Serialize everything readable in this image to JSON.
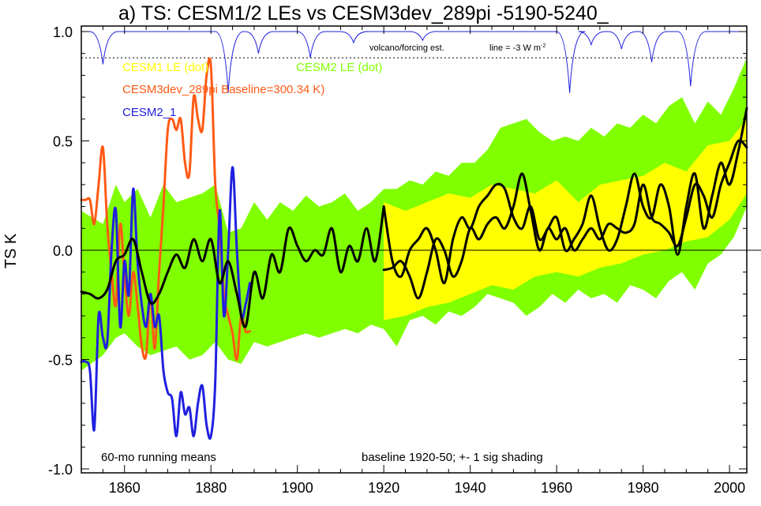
{
  "chart_data": {
    "type": "line",
    "title": "a) TS: CESM1/2 LEs vs CESM3dev_289pi -5190-5240_",
    "xlabel": "",
    "ylabel": "TS K",
    "xlim": [
      1850,
      2004
    ],
    "ylim": [
      -1.0,
      1.0
    ],
    "x_ticks": [
      1860,
      1880,
      1900,
      1920,
      1940,
      1960,
      1980,
      2000
    ],
    "y_ticks": [
      -1.0,
      -0.5,
      0.0,
      0.5,
      1.0
    ],
    "y_tick_labels": [
      "-1.0",
      "-0.5",
      "0.0",
      "0.5",
      "1.0"
    ],
    "grid": false,
    "colors": {
      "cesm1": "#ffff00",
      "cesm2": "#80ff00",
      "cesm3dev": "#ff5a14",
      "cesm2_1": "#2020e0",
      "ensemble_mean": "#000000",
      "volcano": "#2020e0"
    },
    "legend": [
      {
        "label": "CESM1 LE (dot)",
        "color": "#ffff00",
        "placement": "top-left"
      },
      {
        "label": "CESM2 LE (dot)",
        "color": "#80ff00",
        "placement": "top-center"
      },
      {
        "label": "CESM3dev_289pi Baseline=300.34 K)",
        "color": "#ff5a14",
        "placement": "top-left"
      },
      {
        "label": "CESM2_1",
        "color": "#2020e0",
        "placement": "top-left"
      }
    ],
    "annotations": {
      "running_mean": "60-mo running means",
      "baseline": "baseline 1920-50; +- 1 sig shading",
      "volcano": "volcano/forcing est.",
      "volcano_line_prefix": "line = -3 W m",
      "volcano_line_sup": "-2"
    },
    "series": [
      {
        "name": "CESM2 LE (dot)",
        "kind": "band",
        "x": [
          1850,
          1855,
          1858,
          1860,
          1863,
          1866,
          1869,
          1872,
          1875,
          1878,
          1881,
          1884,
          1887,
          1890,
          1893,
          1896,
          1899,
          1902,
          1905,
          1908,
          1911,
          1914,
          1917,
          1920,
          1923,
          1926,
          1929,
          1932,
          1935,
          1938,
          1941,
          1944,
          1947,
          1950,
          1953,
          1956,
          1959,
          1962,
          1965,
          1968,
          1971,
          1974,
          1977,
          1980,
          1983,
          1986,
          1989,
          1992,
          1995,
          1998,
          2001,
          2004
        ],
        "upper": [
          0.18,
          0.12,
          0.3,
          0.22,
          0.28,
          0.15,
          0.3,
          0.22,
          0.24,
          0.26,
          0.3,
          0.08,
          0.1,
          0.22,
          0.14,
          0.22,
          0.18,
          0.25,
          0.2,
          0.22,
          0.26,
          0.18,
          0.22,
          0.28,
          0.28,
          0.32,
          0.3,
          0.36,
          0.34,
          0.4,
          0.4,
          0.46,
          0.56,
          0.58,
          0.6,
          0.54,
          0.5,
          0.52,
          0.5,
          0.56,
          0.52,
          0.58,
          0.56,
          0.62,
          0.58,
          0.66,
          0.7,
          0.58,
          0.68,
          0.62,
          0.74,
          0.88
        ],
        "lower": [
          -0.55,
          -0.48,
          -0.4,
          -0.38,
          -0.44,
          -0.48,
          -0.46,
          -0.44,
          -0.5,
          -0.48,
          -0.42,
          -0.5,
          -0.52,
          -0.42,
          -0.44,
          -0.42,
          -0.4,
          -0.38,
          -0.4,
          -0.38,
          -0.36,
          -0.38,
          -0.34,
          -0.36,
          -0.44,
          -0.32,
          -0.3,
          -0.34,
          -0.28,
          -0.3,
          -0.26,
          -0.2,
          -0.22,
          -0.24,
          -0.3,
          -0.26,
          -0.2,
          -0.24,
          -0.18,
          -0.22,
          -0.2,
          -0.24,
          -0.16,
          -0.18,
          -0.22,
          -0.14,
          -0.1,
          -0.18,
          -0.06,
          -0.02,
          0.06,
          0.2
        ]
      },
      {
        "name": "CESM1 LE (dot)",
        "kind": "band",
        "x": [
          1920,
          1925,
          1930,
          1935,
          1940,
          1945,
          1950,
          1955,
          1960,
          1965,
          1970,
          1975,
          1980,
          1985,
          1990,
          1995,
          2000,
          2004
        ],
        "upper": [
          0.22,
          0.18,
          0.22,
          0.26,
          0.24,
          0.3,
          0.28,
          0.26,
          0.32,
          0.22,
          0.3,
          0.32,
          0.34,
          0.4,
          0.36,
          0.48,
          0.5,
          0.6
        ],
        "lower": [
          -0.32,
          -0.3,
          -0.26,
          -0.24,
          -0.2,
          -0.16,
          -0.18,
          -0.12,
          -0.1,
          -0.12,
          -0.08,
          -0.06,
          -0.02,
          0.0,
          0.04,
          0.06,
          0.14,
          0.26
        ]
      },
      {
        "name": "CESM3dev_289pi Baseline=300.34 K)",
        "kind": "line",
        "x": [
          1850,
          1851,
          1852,
          1853,
          1854,
          1855,
          1856,
          1857,
          1858,
          1859,
          1860,
          1861,
          1862,
          1863,
          1864,
          1865,
          1866,
          1867,
          1868,
          1869,
          1870,
          1871,
          1872,
          1873,
          1874,
          1875,
          1876,
          1877,
          1878,
          1879,
          1880,
          1881,
          1882,
          1883,
          1884,
          1885,
          1886,
          1887,
          1888,
          1889
        ],
        "y": [
          0.23,
          0.23,
          0.23,
          0.12,
          0.3,
          0.47,
          0.12,
          -0.1,
          -0.25,
          0.12,
          -0.12,
          -0.3,
          -0.1,
          -0.25,
          -0.44,
          -0.48,
          -0.2,
          -0.45,
          -0.1,
          0.2,
          0.55,
          0.6,
          0.55,
          0.6,
          0.4,
          0.35,
          0.7,
          0.6,
          0.55,
          0.8,
          0.84,
          0.3,
          0.1,
          -0.2,
          -0.3,
          -0.38,
          -0.5,
          -0.3,
          -0.37,
          -0.37
        ]
      },
      {
        "name": "CESM2_1",
        "kind": "line",
        "x": [
          1850,
          1851,
          1852,
          1853,
          1854,
          1855,
          1856,
          1857,
          1858,
          1859,
          1860,
          1861,
          1862,
          1863,
          1864,
          1865,
          1866,
          1867,
          1868,
          1869,
          1870,
          1871,
          1872,
          1873,
          1874,
          1875,
          1876,
          1877,
          1878,
          1879,
          1880,
          1881,
          1882,
          1883,
          1884,
          1885,
          1886,
          1887,
          1888,
          1889
        ],
        "y": [
          -0.51,
          -0.51,
          -0.55,
          -0.82,
          -0.3,
          -0.4,
          -0.42,
          0.0,
          0.18,
          -0.35,
          -0.05,
          -0.2,
          0.28,
          -0.05,
          -0.25,
          -0.35,
          -0.2,
          -0.35,
          -0.3,
          -0.55,
          -0.65,
          -0.68,
          -0.85,
          -0.65,
          -0.75,
          -0.72,
          -0.85,
          -0.7,
          -0.62,
          -0.8,
          -0.85,
          -0.6,
          0.18,
          -0.3,
          0.0,
          0.38,
          0.0,
          -0.3,
          -0.25,
          -0.15
        ]
      },
      {
        "name": "CESM2 LE ensemble mean",
        "kind": "line",
        "x": [
          1850,
          1852,
          1854,
          1856,
          1858,
          1860,
          1862,
          1864,
          1866,
          1868,
          1870,
          1872,
          1874,
          1876,
          1878,
          1880,
          1882,
          1884,
          1886,
          1888,
          1890,
          1892,
          1894,
          1896,
          1898,
          1900,
          1902,
          1904,
          1906,
          1908,
          1910,
          1912,
          1914,
          1916,
          1918,
          1920
        ],
        "y": [
          -0.19,
          -0.2,
          -0.22,
          -0.18,
          -0.05,
          -0.02,
          0.05,
          -0.1,
          -0.24,
          -0.2,
          -0.1,
          -0.02,
          -0.08,
          0.05,
          -0.05,
          0.05,
          -0.15,
          -0.05,
          -0.2,
          -0.35,
          -0.1,
          -0.22,
          -0.02,
          -0.1,
          0.1,
          0.02,
          -0.05,
          0.0,
          -0.02,
          0.1,
          -0.1,
          0.02,
          -0.05,
          0.1,
          -0.05,
          0.2
        ]
      },
      {
        "name": "CESM1 LE ensemble mean",
        "kind": "line",
        "x": [
          1920,
          1922,
          1924,
          1926,
          1928,
          1930,
          1932,
          1934,
          1936,
          1938,
          1940,
          1942,
          1944,
          1946,
          1948,
          1950,
          1952,
          1954,
          1956,
          1958,
          1960,
          1962,
          1964,
          1966,
          1968,
          1970,
          1972,
          1974,
          1976,
          1978,
          1980,
          1982,
          1984,
          1986,
          1988,
          1990,
          1992,
          1994,
          1996,
          1998,
          2000,
          2002,
          2004
        ],
        "y": [
          -0.09,
          -0.08,
          -0.05,
          -0.12,
          -0.22,
          -0.1,
          0.05,
          0.0,
          -0.12,
          -0.05,
          0.1,
          0.05,
          0.12,
          0.15,
          0.1,
          0.2,
          0.35,
          0.18,
          0.0,
          0.1,
          0.05,
          0.1,
          0.0,
          0.05,
          0.1,
          0.05,
          0.12,
          0.1,
          0.08,
          0.12,
          0.3,
          0.15,
          0.12,
          0.08,
          0.02,
          0.15,
          0.3,
          0.25,
          0.15,
          0.3,
          0.4,
          0.5,
          0.47
        ]
      },
      {
        "name": "CESM2 LE ensemble mean (1920-2004)",
        "kind": "line",
        "x": [
          1920,
          1922,
          1924,
          1926,
          1928,
          1930,
          1932,
          1934,
          1936,
          1938,
          1940,
          1942,
          1944,
          1946,
          1948,
          1950,
          1952,
          1954,
          1956,
          1958,
          1960,
          1962,
          1964,
          1966,
          1968,
          1970,
          1972,
          1974,
          1976,
          1978,
          1980,
          1982,
          1984,
          1986,
          1988,
          1990,
          1992,
          1994,
          1996,
          1998,
          2000,
          2002,
          2004
        ],
        "y": [
          0.2,
          -0.05,
          -0.12,
          0.0,
          0.05,
          0.1,
          0.0,
          -0.15,
          0.05,
          0.15,
          0.1,
          0.2,
          0.25,
          0.3,
          0.28,
          0.15,
          0.1,
          0.2,
          0.05,
          0.1,
          0.15,
          0.0,
          0.05,
          0.12,
          0.25,
          0.1,
          0.0,
          0.05,
          0.2,
          0.35,
          0.2,
          0.15,
          0.3,
          0.2,
          -0.02,
          0.2,
          0.35,
          0.1,
          0.25,
          0.4,
          0.3,
          0.45,
          0.65
        ]
      }
    ],
    "volcano_forcing": {
      "color": "#2020e0",
      "dotted_line_y": 0.88,
      "top_y": 1.0,
      "scale_per_unit": 0.12,
      "events": [
        {
          "year": 1855,
          "depth": 0.15
        },
        {
          "year": 1884,
          "depth": 0.28
        },
        {
          "year": 1891,
          "depth": 0.1
        },
        {
          "year": 1903,
          "depth": 0.12
        },
        {
          "year": 1913,
          "depth": 0.05
        },
        {
          "year": 1929,
          "depth": 0.04
        },
        {
          "year": 1963,
          "depth": 0.28
        },
        {
          "year": 1968,
          "depth": 0.06
        },
        {
          "year": 1975,
          "depth": 0.08
        },
        {
          "year": 1982,
          "depth": 0.14
        },
        {
          "year": 1991,
          "depth": 0.25
        }
      ]
    }
  }
}
